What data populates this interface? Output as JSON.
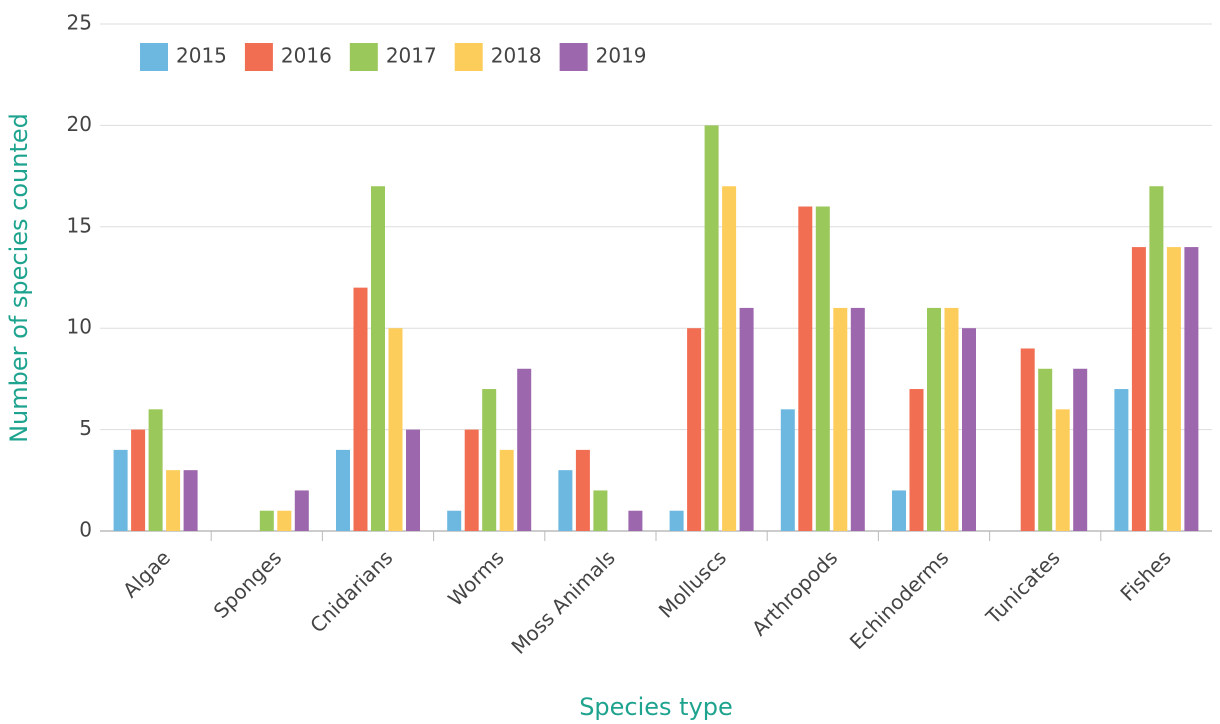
{
  "chart_data": {
    "type": "bar",
    "x_label": "Species type",
    "y_label": "Number of species counted",
    "categories": [
      "Algae",
      "Sponges",
      "Cnidarians",
      "Worms",
      "Moss Animals",
      "Molluscs",
      "Arthropods",
      "Echinoderms",
      "Tunicates",
      "Fishes"
    ],
    "series": [
      {
        "name": "2015",
        "color": "#6cb8e0",
        "values": [
          4,
          0,
          4,
          1,
          3,
          1,
          6,
          2,
          0,
          7
        ]
      },
      {
        "name": "2016",
        "color": "#f26e52",
        "values": [
          5,
          0,
          12,
          5,
          4,
          10,
          16,
          7,
          9,
          14
        ]
      },
      {
        "name": "2017",
        "color": "#9bc85a",
        "values": [
          6,
          1,
          17,
          7,
          2,
          20,
          16,
          11,
          8,
          17
        ]
      },
      {
        "name": "2018",
        "color": "#fdcd5b",
        "values": [
          3,
          1,
          10,
          4,
          0,
          17,
          11,
          11,
          6,
          14
        ]
      },
      {
        "name": "2019",
        "color": "#9c67ad",
        "values": [
          3,
          2,
          5,
          8,
          1,
          11,
          11,
          10,
          8,
          14
        ]
      }
    ],
    "ylim": [
      0,
      25
    ],
    "yticks": [
      0,
      5,
      10,
      15,
      20,
      25
    ],
    "grid": true,
    "legend": "upper left"
  }
}
